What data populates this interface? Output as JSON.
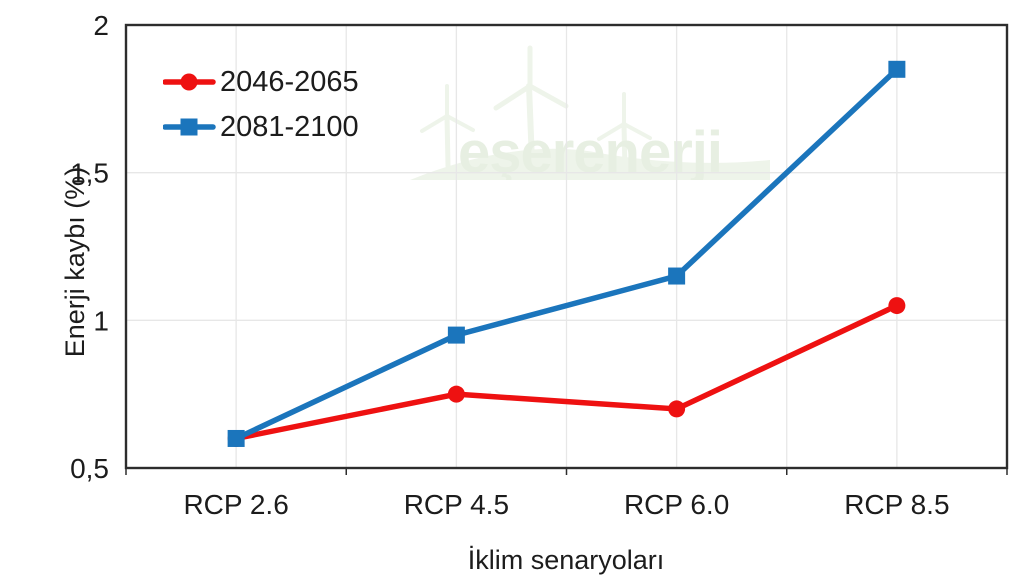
{
  "watermark": {
    "text": "eşerenerji",
    "color": "#e7efe2",
    "graphic_color": "#eef4ea",
    "graphic": "wind-turbines-over-hill"
  },
  "colors": {
    "background": "#ffffff",
    "frame": "#2d2d2d",
    "grid": "#e7e7e7",
    "text": "#1c1c1c"
  },
  "chart_data": {
    "type": "line",
    "title": "",
    "xlabel": "İklim senaryoları",
    "ylabel": "Enerji kaybı (%)",
    "categories": [
      "RCP 2.6",
      "RCP 4.5",
      "RCP 6.0",
      "RCP 8.5"
    ],
    "series": [
      {
        "name": "2046-2065",
        "color": "#ee1111",
        "marker": "circle",
        "values": [
          0.6,
          0.75,
          0.7,
          1.05
        ]
      },
      {
        "name": "2081-2100",
        "color": "#1b75bc",
        "marker": "square",
        "values": [
          0.6,
          0.95,
          1.15,
          1.85
        ]
      }
    ],
    "ylim": [
      0.5,
      2
    ],
    "yticks": [
      {
        "value": 0.5,
        "label": "0,5"
      },
      {
        "value": 1,
        "label": "1"
      },
      {
        "value": 1.5,
        "label": "1,5"
      },
      {
        "value": 2,
        "label": "2"
      }
    ],
    "grid": true,
    "legend_position": "inside-top-left"
  }
}
